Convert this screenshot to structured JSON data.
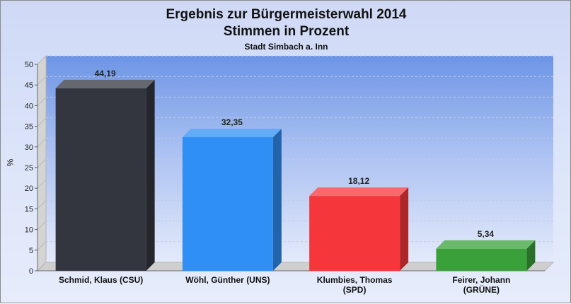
{
  "chart_data": {
    "type": "bar",
    "title": "Ergebnis zur Bürgermeisterwahl 2014",
    "subtitle": "Stimmen in Prozent",
    "subtitle2": "Stadt Simbach a. Inn",
    "ylabel": "%",
    "xlabel": "",
    "ylim": [
      0,
      50
    ],
    "yticks": [
      "0",
      "5",
      "10",
      "15",
      "20",
      "25",
      "30",
      "35",
      "40",
      "45",
      "50"
    ],
    "grid": true,
    "categories": [
      [
        "Schmid, Klaus (CSU)"
      ],
      [
        "Wöhl, Günther (UNS)"
      ],
      [
        "Klumbies, Thomas",
        "(SPD)"
      ],
      [
        "Feirer, Johann",
        "(GRÜNE)"
      ]
    ],
    "values": [
      44.19,
      32.35,
      18.12,
      5.34
    ],
    "value_labels": [
      "44,19",
      "32,35",
      "18,12",
      "5,34"
    ],
    "colors": [
      "#33363f",
      "#2f8ff4",
      "#f5373b",
      "#3aa13a"
    ]
  }
}
